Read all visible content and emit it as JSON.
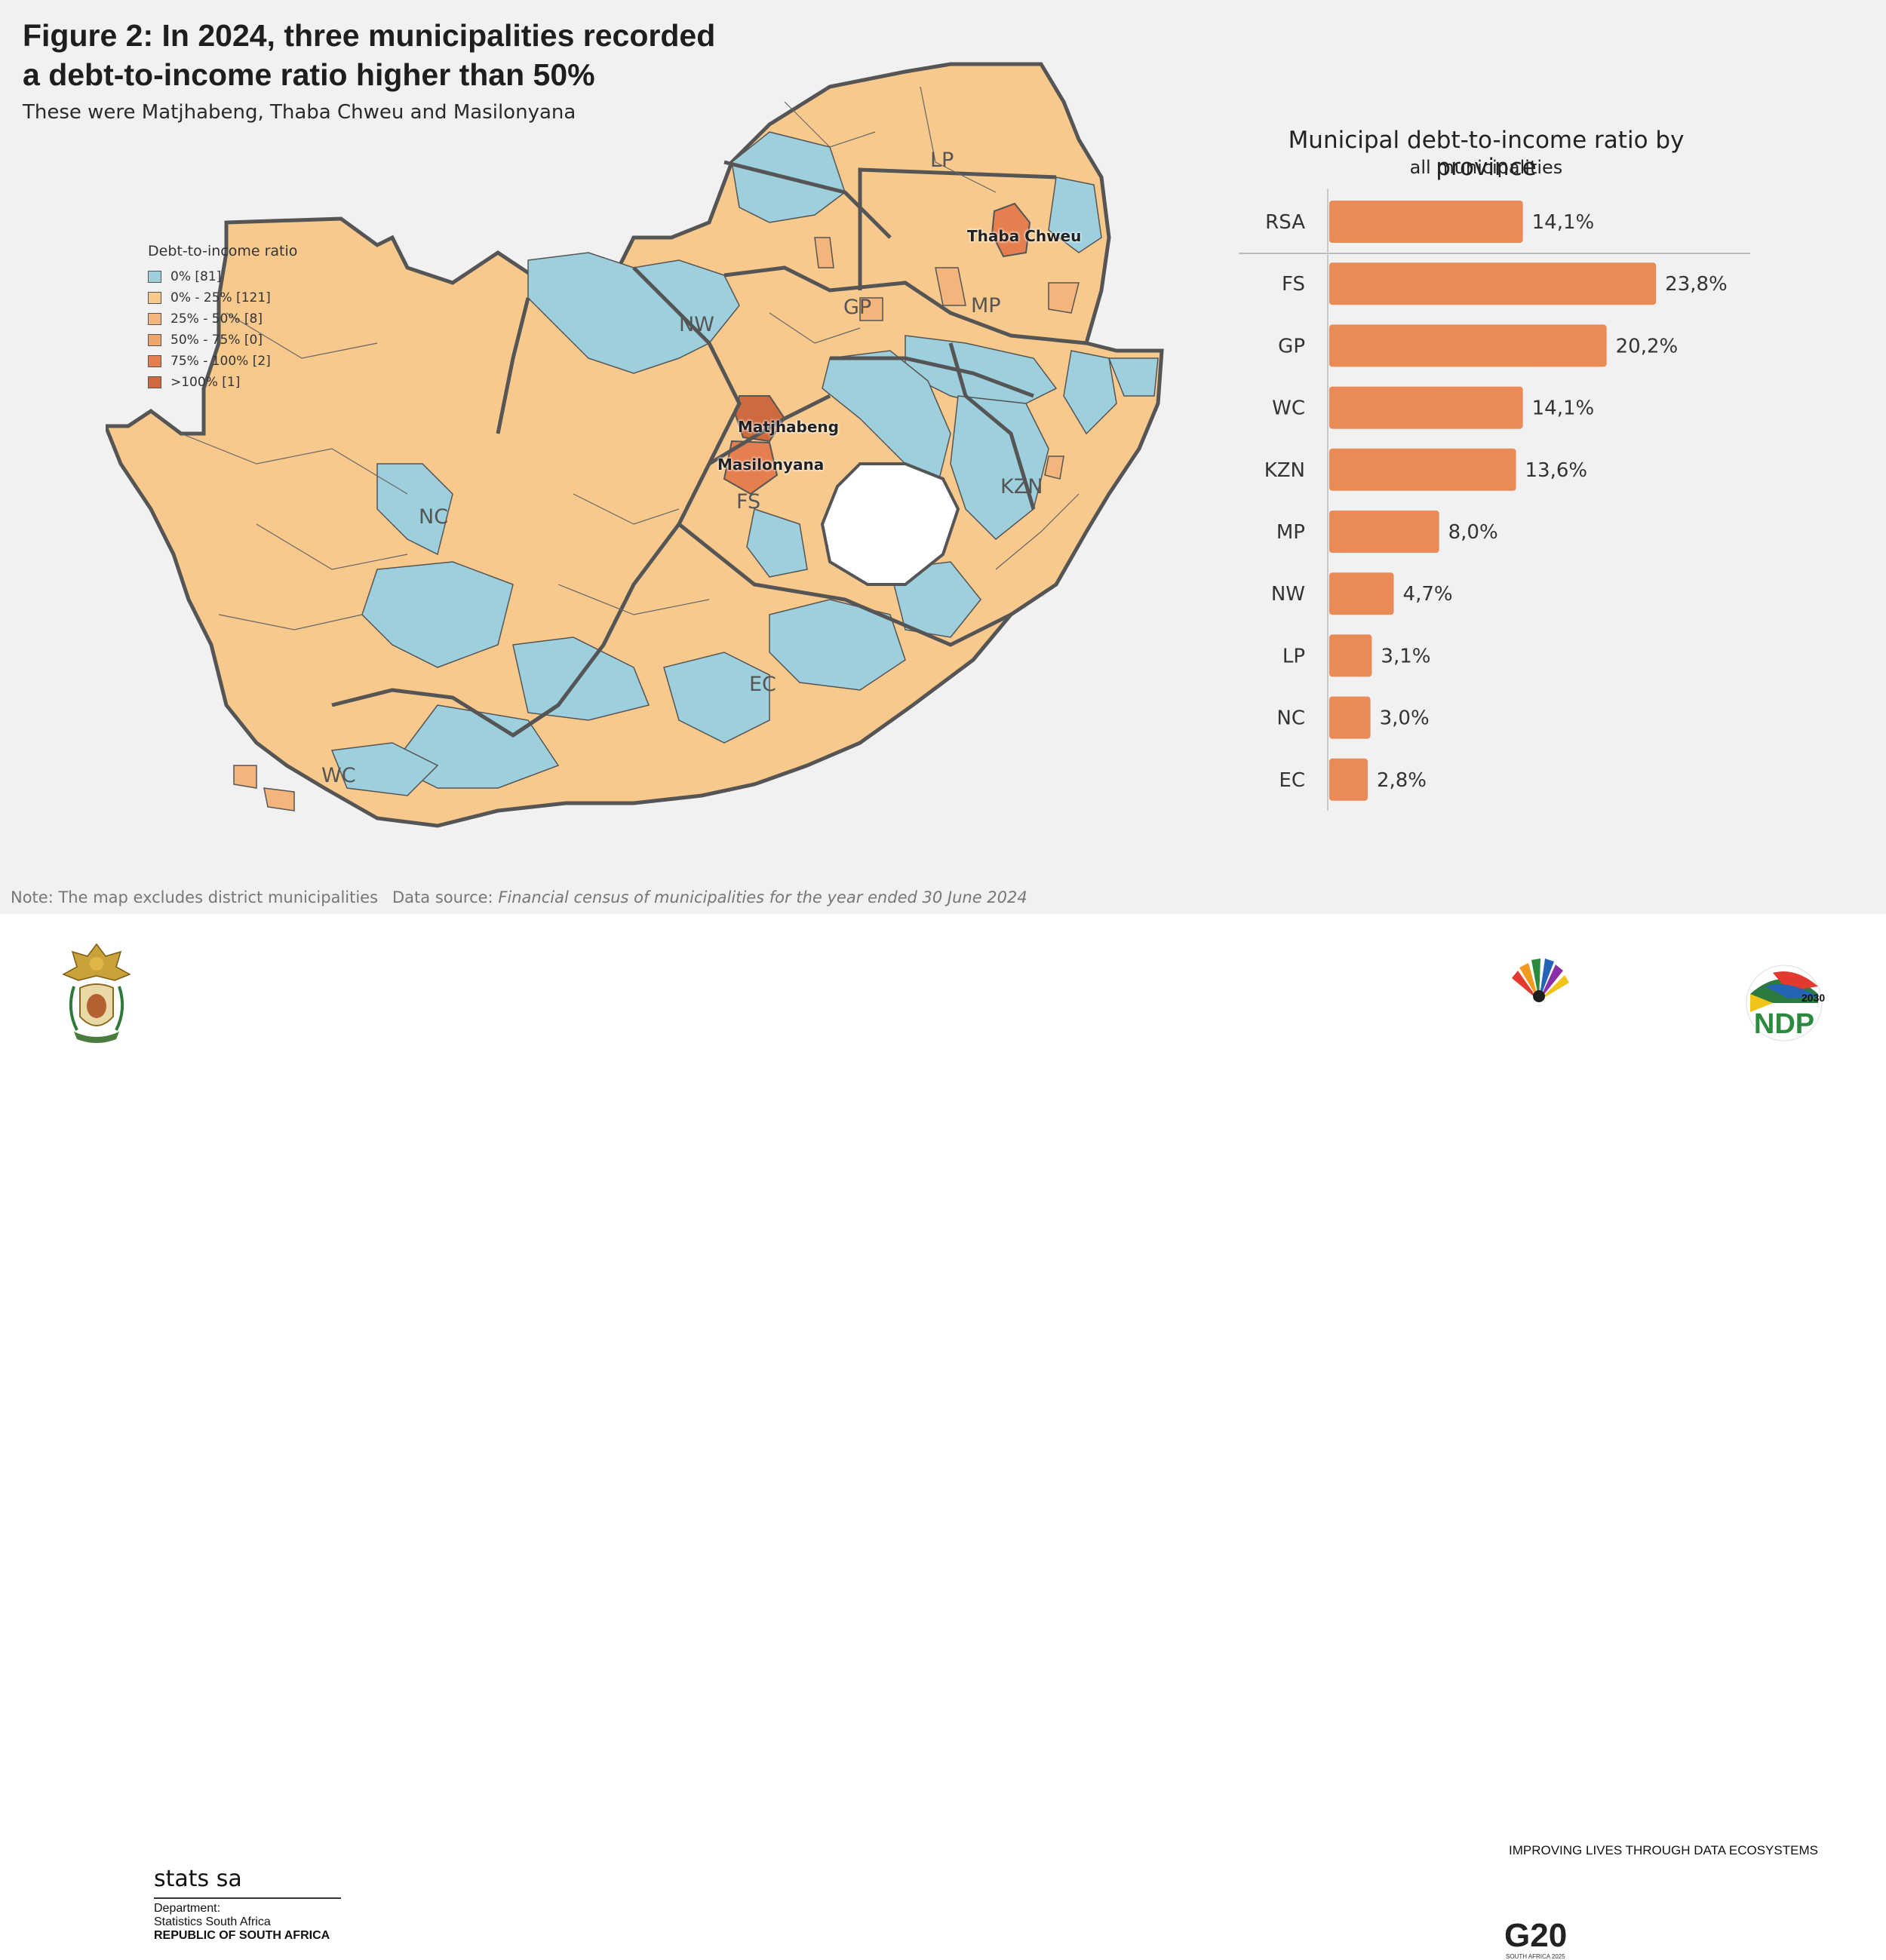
{
  "title_line1": "Figure 2: In 2024, three municipalities recorded",
  "title_line2": "a debt-to-income ratio higher than 50%",
  "subtitle": "These were Matjhabeng, Thaba Chweu and Masilonyana",
  "legend": {
    "title": "Debt-to-income ratio",
    "items": [
      {
        "label": "0% [81]",
        "color": "#9dcfdc"
      },
      {
        "label": "0% - 25% [121]",
        "color": "#f8c98d"
      },
      {
        "label": "25% - 50% [8]",
        "color": "#f3b57b"
      },
      {
        "label": "50% - 75% [0]",
        "color": "#eea56b"
      },
      {
        "label": "75% - 100% [2]",
        "color": "#e67f4f"
      },
      {
        "label": ">100% [1]",
        "color": "#cf6a3e"
      }
    ]
  },
  "map_labels": {
    "LP": "LP",
    "NW": "NW",
    "GP": "GP",
    "MP": "MP",
    "NC": "NC",
    "FS": "FS",
    "KZN": "KZN",
    "EC": "EC",
    "WC": "WC"
  },
  "highlighted": {
    "thaba": "Thaba Chweu",
    "matjhabeng": "Matjhabeng",
    "masilonyana": "Masilonyana"
  },
  "chart_data": {
    "type": "bar",
    "orientation": "horizontal",
    "title": "Municipal debt-to-income ratio by province",
    "subtitle": "all municipalities",
    "categories": [
      "RSA",
      "FS",
      "GP",
      "WC",
      "KZN",
      "MP",
      "NW",
      "LP",
      "NC",
      "EC"
    ],
    "values": [
      14.1,
      23.8,
      20.2,
      14.1,
      13.6,
      8.0,
      4.7,
      3.1,
      3.0,
      2.8
    ],
    "value_labels": [
      "14,1%",
      "23,8%",
      "20,2%",
      "14,1%",
      "13,6%",
      "8,0%",
      "4,7%",
      "3,1%",
      "3,0%",
      "2,8%"
    ],
    "bar_color": "#e98a57",
    "xlim": [
      0,
      25
    ]
  },
  "note": "Note: The map excludes district municipalities",
  "source_prefix": "Data source: ",
  "source_text": "Financial census of municipalities for the year ended 30 June 2024",
  "footer": {
    "tagline": "IMPROVING LIVES THROUGH DATA ECOSYSTEMS",
    "brand": "stats sa",
    "dept1": "Department:",
    "dept2": "Statistics South Africa",
    "dept3": "REPUBLIC OF SOUTH AFRICA",
    "g20": "G20",
    "g20_sub": "SOUTH AFRICA 2025",
    "ndp": "NDP",
    "ndp_year": "2030"
  }
}
